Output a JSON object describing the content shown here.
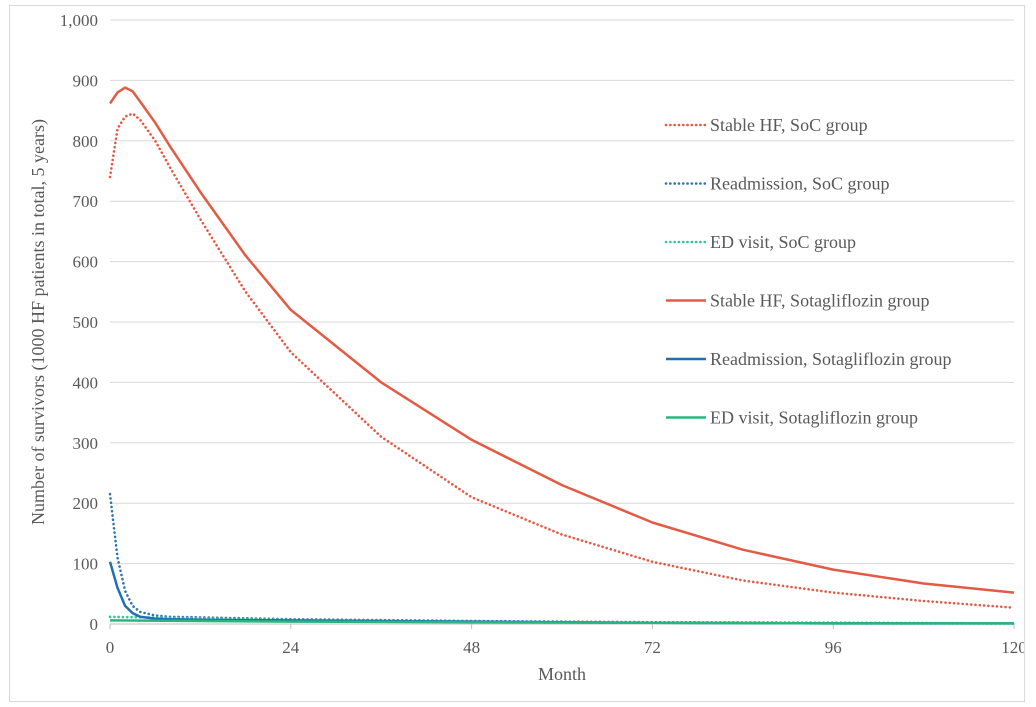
{
  "chart_data": {
    "type": "line",
    "title": "",
    "xlabel": "Month",
    "ylabel": "Number of survivors (1000 HF patients in total, 5 years)",
    "xlim": [
      0,
      120
    ],
    "ylim": [
      0,
      1000
    ],
    "x_ticks": [
      "0",
      "24",
      "48",
      "72",
      "96",
      "120"
    ],
    "y_ticks": [
      "0",
      "100",
      "200",
      "300",
      "400",
      "500",
      "600",
      "700",
      "800",
      "900",
      "1,000"
    ],
    "grid": "horizontal",
    "legend_position": "right",
    "series": [
      {
        "name": "Stable HF, SoC group",
        "color": "#e35b44",
        "dash": "dotted",
        "x": [
          0,
          1,
          2,
          3,
          4,
          6,
          8,
          12,
          18,
          24,
          36,
          48,
          60,
          72,
          84,
          96,
          108,
          120
        ],
        "values": [
          740,
          820,
          840,
          845,
          835,
          800,
          755,
          670,
          550,
          450,
          310,
          210,
          148,
          103,
          72,
          52,
          38,
          27
        ]
      },
      {
        "name": "Readmission, SoC group",
        "color": "#2e75b6",
        "dash": "dotted",
        "x": [
          0,
          1,
          2,
          3,
          4,
          6,
          8,
          12,
          24,
          48,
          72,
          96,
          120
        ],
        "values": [
          215,
          110,
          55,
          30,
          20,
          14,
          12,
          11,
          8,
          5,
          3,
          2,
          1
        ]
      },
      {
        "name": "ED visit, SoC group",
        "color": "#2cc7a0",
        "dash": "dotted",
        "x": [
          0,
          24,
          48,
          72,
          96,
          120
        ],
        "values": [
          12,
          7,
          4,
          2,
          1,
          1
        ]
      },
      {
        "name": "Stable HF, Sotagliflozin group",
        "color": "#e35b44",
        "dash": "solid",
        "x": [
          0,
          1,
          2,
          3,
          4,
          6,
          8,
          12,
          18,
          24,
          36,
          48,
          60,
          72,
          84,
          96,
          108,
          120
        ],
        "values": [
          862,
          880,
          888,
          882,
          865,
          830,
          790,
          715,
          610,
          520,
          400,
          305,
          230,
          168,
          123,
          90,
          67,
          52
        ]
      },
      {
        "name": "Readmission, Sotagliflozin group",
        "color": "#1f6fb5",
        "dash": "solid",
        "x": [
          0,
          1,
          2,
          3,
          4,
          6,
          8,
          12,
          24,
          48,
          72,
          96,
          120
        ],
        "values": [
          103,
          60,
          30,
          18,
          12,
          9,
          8,
          7,
          6,
          4,
          2,
          1,
          1
        ]
      },
      {
        "name": "ED visit, Sotagliflozin group",
        "color": "#2ab57d",
        "dash": "solid",
        "x": [
          0,
          24,
          48,
          72,
          96,
          120
        ],
        "values": [
          6,
          4,
          3,
          2,
          1,
          1
        ]
      }
    ]
  }
}
